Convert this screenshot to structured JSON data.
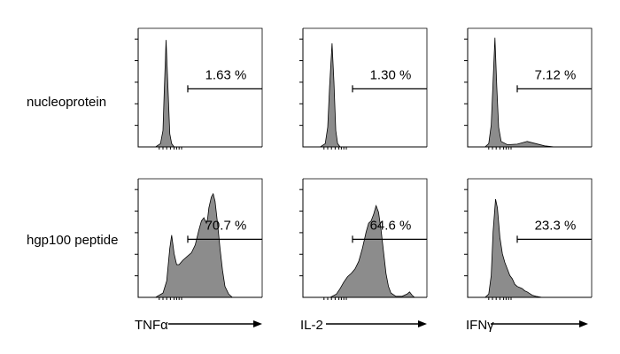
{
  "chart_data": {
    "type": "area",
    "description_rows": [
      "nucleoprotein",
      "hgp100 peptide"
    ],
    "columns": [
      {
        "marker": "TNFα"
      },
      {
        "marker": "IL-2"
      },
      {
        "marker": "IFNγ"
      }
    ],
    "panels": [
      {
        "row": 0,
        "col": 0,
        "gate_label": "1.63 %",
        "gate_percent": 1.63,
        "curve": [
          [
            0.0,
            0
          ],
          [
            0.14,
            0
          ],
          [
            0.18,
            0.03
          ],
          [
            0.2,
            0.15
          ],
          [
            0.21,
            0.5
          ],
          [
            0.225,
            0.98
          ],
          [
            0.24,
            0.55
          ],
          [
            0.255,
            0.12
          ],
          [
            0.27,
            0.03
          ],
          [
            0.29,
            0
          ],
          [
            1.0,
            0
          ]
        ]
      },
      {
        "row": 0,
        "col": 1,
        "gate_label": "1.30 %",
        "gate_percent": 1.3,
        "curve": [
          [
            0.0,
            0
          ],
          [
            0.14,
            0
          ],
          [
            0.18,
            0.03
          ],
          [
            0.2,
            0.18
          ],
          [
            0.215,
            0.55
          ],
          [
            0.235,
            0.95
          ],
          [
            0.25,
            0.6
          ],
          [
            0.265,
            0.15
          ],
          [
            0.28,
            0.03
          ],
          [
            0.3,
            0
          ],
          [
            1.0,
            0
          ]
        ]
      },
      {
        "row": 0,
        "col": 2,
        "gate_label": "7.12 %",
        "gate_percent": 7.12,
        "curve": [
          [
            0.0,
            0
          ],
          [
            0.14,
            0
          ],
          [
            0.17,
            0.03
          ],
          [
            0.19,
            0.2
          ],
          [
            0.205,
            0.6
          ],
          [
            0.22,
            1.0
          ],
          [
            0.235,
            0.55
          ],
          [
            0.25,
            0.18
          ],
          [
            0.27,
            0.05
          ],
          [
            0.32,
            0.02
          ],
          [
            0.4,
            0.025
          ],
          [
            0.48,
            0.05
          ],
          [
            0.55,
            0.03
          ],
          [
            0.62,
            0.01
          ],
          [
            0.7,
            0
          ],
          [
            1.0,
            0
          ]
        ]
      },
      {
        "row": 1,
        "col": 0,
        "gate_label": "70.7 %",
        "gate_percent": 70.7,
        "curve": [
          [
            0.0,
            0
          ],
          [
            0.14,
            0
          ],
          [
            0.2,
            0.04
          ],
          [
            0.23,
            0.15
          ],
          [
            0.255,
            0.45
          ],
          [
            0.27,
            0.57
          ],
          [
            0.29,
            0.4
          ],
          [
            0.31,
            0.3
          ],
          [
            0.33,
            0.3
          ],
          [
            0.36,
            0.34
          ],
          [
            0.4,
            0.38
          ],
          [
            0.43,
            0.41
          ],
          [
            0.46,
            0.48
          ],
          [
            0.49,
            0.62
          ],
          [
            0.51,
            0.7
          ],
          [
            0.53,
            0.73
          ],
          [
            0.55,
            0.68
          ],
          [
            0.56,
            0.72
          ],
          [
            0.57,
            0.82
          ],
          [
            0.59,
            0.92
          ],
          [
            0.605,
            0.95
          ],
          [
            0.62,
            0.88
          ],
          [
            0.64,
            0.68
          ],
          [
            0.66,
            0.45
          ],
          [
            0.68,
            0.25
          ],
          [
            0.7,
            0.1
          ],
          [
            0.73,
            0.03
          ],
          [
            0.76,
            0
          ],
          [
            1.0,
            0
          ]
        ]
      },
      {
        "row": 1,
        "col": 1,
        "gate_label": "64.6 %",
        "gate_percent": 64.6,
        "curve": [
          [
            0.0,
            0
          ],
          [
            0.22,
            0
          ],
          [
            0.27,
            0.03
          ],
          [
            0.3,
            0.08
          ],
          [
            0.33,
            0.14
          ],
          [
            0.36,
            0.19
          ],
          [
            0.39,
            0.22
          ],
          [
            0.42,
            0.26
          ],
          [
            0.45,
            0.33
          ],
          [
            0.48,
            0.45
          ],
          [
            0.51,
            0.6
          ],
          [
            0.53,
            0.68
          ],
          [
            0.55,
            0.7
          ],
          [
            0.57,
            0.76
          ],
          [
            0.59,
            0.84
          ],
          [
            0.61,
            0.78
          ],
          [
            0.63,
            0.62
          ],
          [
            0.65,
            0.42
          ],
          [
            0.67,
            0.22
          ],
          [
            0.69,
            0.1
          ],
          [
            0.71,
            0.04
          ],
          [
            0.75,
            0.01
          ],
          [
            0.8,
            0.01
          ],
          [
            0.84,
            0.03
          ],
          [
            0.86,
            0.05
          ],
          [
            0.88,
            0.02
          ],
          [
            0.9,
            0
          ],
          [
            1.0,
            0
          ]
        ]
      },
      {
        "row": 1,
        "col": 2,
        "gate_label": "23.3 %",
        "gate_percent": 23.3,
        "curve": [
          [
            0.0,
            0
          ],
          [
            0.14,
            0
          ],
          [
            0.17,
            0.03
          ],
          [
            0.19,
            0.2
          ],
          [
            0.205,
            0.6
          ],
          [
            0.225,
            0.9
          ],
          [
            0.24,
            0.82
          ],
          [
            0.26,
            0.55
          ],
          [
            0.28,
            0.4
          ],
          [
            0.3,
            0.32
          ],
          [
            0.32,
            0.26
          ],
          [
            0.34,
            0.2
          ],
          [
            0.36,
            0.17
          ],
          [
            0.38,
            0.12
          ],
          [
            0.4,
            0.1
          ],
          [
            0.42,
            0.09
          ],
          [
            0.44,
            0.08
          ],
          [
            0.46,
            0.06
          ],
          [
            0.48,
            0.05
          ],
          [
            0.52,
            0.02
          ],
          [
            0.55,
            0.01
          ],
          [
            0.6,
            0
          ],
          [
            1.0,
            0
          ]
        ]
      }
    ],
    "gate_range": [
      0.4,
      1.0
    ],
    "x_axis": "log fluorescence (not labelled)",
    "grid": false
  },
  "colors": {
    "fill": "#8c8c8c",
    "stroke": "#000000",
    "axis": "#000000"
  }
}
